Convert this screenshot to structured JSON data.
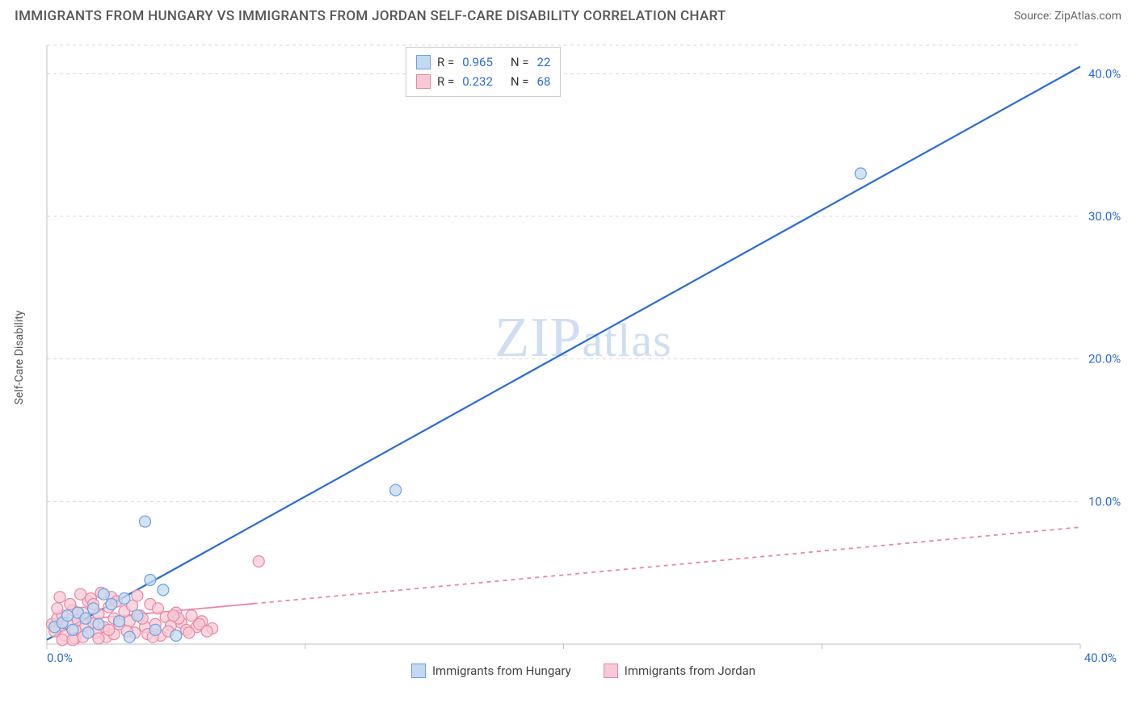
{
  "header": {
    "title": "IMMIGRANTS FROM HUNGARY VS IMMIGRANTS FROM JORDAN SELF-CARE DISABILITY CORRELATION CHART",
    "source": "Source: ZipAtlas.com"
  },
  "chart": {
    "type": "scatter",
    "ylabel": "Self-Care Disability",
    "watermark": "ZIPatlas",
    "background_color": "#ffffff",
    "grid_color": "#d9d9d9",
    "axis_color": "#bfbfbf",
    "xlim": [
      0,
      40
    ],
    "ylim": [
      0,
      42
    ],
    "x_ticks": [
      0,
      10,
      20,
      30,
      40
    ],
    "x_tick_labels": [
      "0.0%",
      "",
      "",
      "",
      "40.0%"
    ],
    "x_tick_label_color": "#2a6cd4",
    "y_ticks": [
      10,
      20,
      30,
      40
    ],
    "y_tick_labels": [
      "10.0%",
      "20.0%",
      "30.0%",
      "40.0%"
    ],
    "y_tick_label_color": "#2a6cd4",
    "series": {
      "hungary": {
        "label": "Immigrants from Hungary",
        "color_fill": "#c3d9f2",
        "color_stroke": "#6a9fe0",
        "marker_radius": 7,
        "r_value": "0.965",
        "n_value": "22",
        "points": [
          [
            0.3,
            1.2
          ],
          [
            0.6,
            1.5
          ],
          [
            1.0,
            1.0
          ],
          [
            1.2,
            2.2
          ],
          [
            1.5,
            1.8
          ],
          [
            1.8,
            2.5
          ],
          [
            2.0,
            1.4
          ],
          [
            2.5,
            2.8
          ],
          [
            2.8,
            1.6
          ],
          [
            3.0,
            3.2
          ],
          [
            3.2,
            0.5
          ],
          [
            3.5,
            2.0
          ],
          [
            4.0,
            4.5
          ],
          [
            4.2,
            1.0
          ],
          [
            4.5,
            3.8
          ],
          [
            5.0,
            0.6
          ],
          [
            3.8,
            8.6
          ],
          [
            13.5,
            10.8
          ],
          [
            31.5,
            33.0
          ],
          [
            2.2,
            3.5
          ],
          [
            1.6,
            0.8
          ],
          [
            0.8,
            2.0
          ]
        ],
        "trend": {
          "x1": 0,
          "y1": 0.3,
          "x2": 40,
          "y2": 40.5,
          "stroke": "#2a6cd4",
          "width": 2.2,
          "dash": "none"
        }
      },
      "jordan": {
        "label": "Immigrants from Jordan",
        "color_fill": "#f7c9d6",
        "color_stroke": "#e986a3",
        "marker_radius": 7,
        "r_value": "0.232",
        "n_value": "68",
        "points": [
          [
            0.2,
            1.4
          ],
          [
            0.4,
            1.8
          ],
          [
            0.5,
            1.2
          ],
          [
            0.6,
            2.0
          ],
          [
            0.8,
            1.5
          ],
          [
            1.0,
            2.4
          ],
          [
            1.1,
            1.0
          ],
          [
            1.2,
            1.7
          ],
          [
            1.4,
            2.2
          ],
          [
            1.5,
            1.3
          ],
          [
            1.6,
            3.0
          ],
          [
            1.8,
            1.5
          ],
          [
            2.0,
            2.1
          ],
          [
            2.2,
            1.2
          ],
          [
            2.4,
            2.6
          ],
          [
            2.6,
            1.8
          ],
          [
            2.8,
            1.4
          ],
          [
            3.0,
            2.3
          ],
          [
            3.2,
            1.6
          ],
          [
            3.4,
            0.8
          ],
          [
            3.6,
            2.0
          ],
          [
            3.8,
            1.2
          ],
          [
            4.0,
            2.8
          ],
          [
            4.2,
            1.4
          ],
          [
            4.4,
            0.6
          ],
          [
            4.6,
            1.9
          ],
          [
            4.8,
            1.3
          ],
          [
            5.0,
            2.2
          ],
          [
            5.2,
            1.5
          ],
          [
            5.4,
            1.0
          ],
          [
            5.6,
            2.0
          ],
          [
            5.8,
            1.2
          ],
          [
            6.0,
            1.6
          ],
          [
            6.4,
            1.1
          ],
          [
            1.3,
            3.5
          ],
          [
            1.7,
            3.2
          ],
          [
            2.1,
            3.6
          ],
          [
            2.5,
            3.3
          ],
          [
            0.3,
            0.9
          ],
          [
            0.7,
            0.6
          ],
          [
            0.9,
            2.8
          ],
          [
            1.1,
            0.4
          ],
          [
            1.9,
            0.8
          ],
          [
            2.3,
            0.5
          ],
          [
            2.7,
            3.0
          ],
          [
            3.1,
            0.9
          ],
          [
            3.5,
            3.4
          ],
          [
            3.9,
            0.7
          ],
          [
            4.3,
            2.5
          ],
          [
            4.7,
            0.9
          ],
          [
            5.1,
            1.8
          ],
          [
            5.5,
            0.8
          ],
          [
            5.9,
            1.4
          ],
          [
            6.2,
            0.9
          ],
          [
            8.2,
            5.8
          ],
          [
            0.5,
            3.3
          ],
          [
            1.4,
            0.5
          ],
          [
            2.0,
            0.4
          ],
          [
            2.6,
            0.7
          ],
          [
            3.3,
            2.7
          ],
          [
            4.1,
            0.5
          ],
          [
            4.9,
            2.0
          ],
          [
            0.6,
            0.3
          ],
          [
            1.8,
            2.8
          ],
          [
            3.7,
            1.8
          ],
          [
            0.4,
            2.5
          ],
          [
            1.0,
            0.3
          ],
          [
            2.4,
            1.0
          ]
        ],
        "trend": {
          "x1": 0,
          "y1": 1.5,
          "x2": 40,
          "y2": 8.2,
          "stroke": "#e986a3",
          "width": 1.8,
          "dash": "5,5",
          "solid_until_x": 8
        }
      }
    },
    "legend_top": {
      "r_label": "R =",
      "n_label": "N ="
    },
    "legend_bottom": [
      {
        "key": "hungary"
      },
      {
        "key": "jordan"
      }
    ]
  }
}
